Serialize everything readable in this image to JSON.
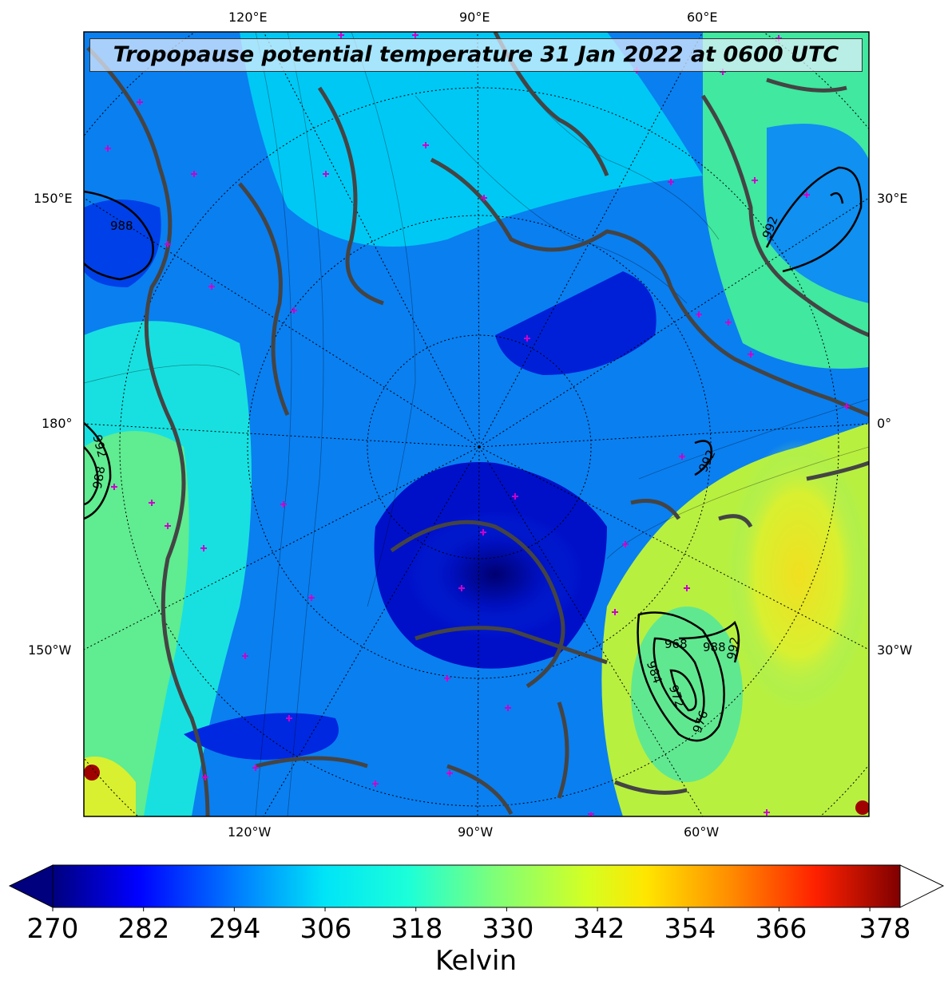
{
  "title": "Tropopause potential temperature 31 Jan 2022 at 0600 UTC",
  "map": {
    "projection": "north-polar-stereographic",
    "top_labels": [
      "120°E",
      "90°E",
      "60°E"
    ],
    "bottom_labels": [
      "120°W",
      "90°W",
      "60°W"
    ],
    "left_labels": [
      "150°E",
      "180°",
      "150°W"
    ],
    "right_labels": [
      "30°E",
      "0°",
      "30°W"
    ],
    "pressure_contour_labels": [
      "988",
      "992",
      "992",
      "988",
      "992",
      "992",
      "984",
      "972",
      "976",
      "968",
      "988"
    ],
    "colors": {
      "coastline": "#444444",
      "station_marker": "#cc00cc",
      "contour": "#000000"
    }
  },
  "colorbar": {
    "label": "Kelvin",
    "ticks": [
      "270",
      "282",
      "294",
      "306",
      "318",
      "330",
      "342",
      "354",
      "366",
      "378"
    ],
    "min": 270,
    "max": 382,
    "extend": "both",
    "colors": [
      "#00007f",
      "#0000ff",
      "#007fff",
      "#00e4f8",
      "#1cffd8",
      "#7dff7a",
      "#d4ff23",
      "#ffe600",
      "#ff8c00",
      "#ff2100",
      "#7f0000"
    ]
  }
}
